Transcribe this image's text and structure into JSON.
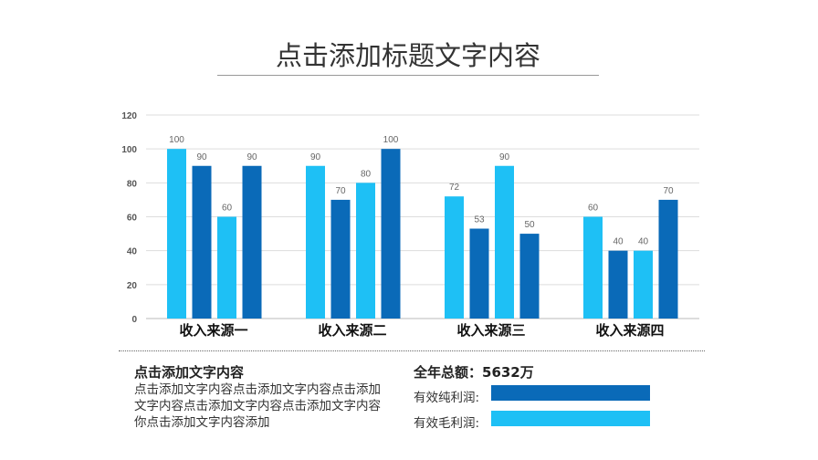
{
  "title": "点击添加标题文字内容",
  "colors": {
    "light": "#1ec0f5",
    "dark": "#0a6ab8"
  },
  "chart_data": {
    "type": "bar",
    "categories": [
      "收入来源一",
      "收入来源二",
      "收入来源三",
      "收入来源四"
    ],
    "bar_values": [
      [
        100,
        90,
        60,
        90
      ],
      [
        90,
        70,
        80,
        100
      ],
      [
        72,
        53,
        90,
        50
      ],
      [
        60,
        40,
        40,
        70
      ]
    ],
    "bar_colors": [
      "light",
      "dark",
      "light",
      "dark"
    ],
    "ylim": [
      0,
      120
    ],
    "yticks": [
      0,
      20,
      40,
      60,
      80,
      100,
      120
    ],
    "grid": true
  },
  "footer": {
    "heading": "点击添加文字内容",
    "body": "点击添加文字内容点击添加文字内容点击添加文字内容点击添加文字内容点击添加文字内容你点击添加文字内容添加",
    "total": "全年总额：5632万",
    "legend": [
      {
        "label": "有效纯利润:",
        "color": "dark"
      },
      {
        "label": "有效毛利润:",
        "color": "light"
      }
    ]
  }
}
